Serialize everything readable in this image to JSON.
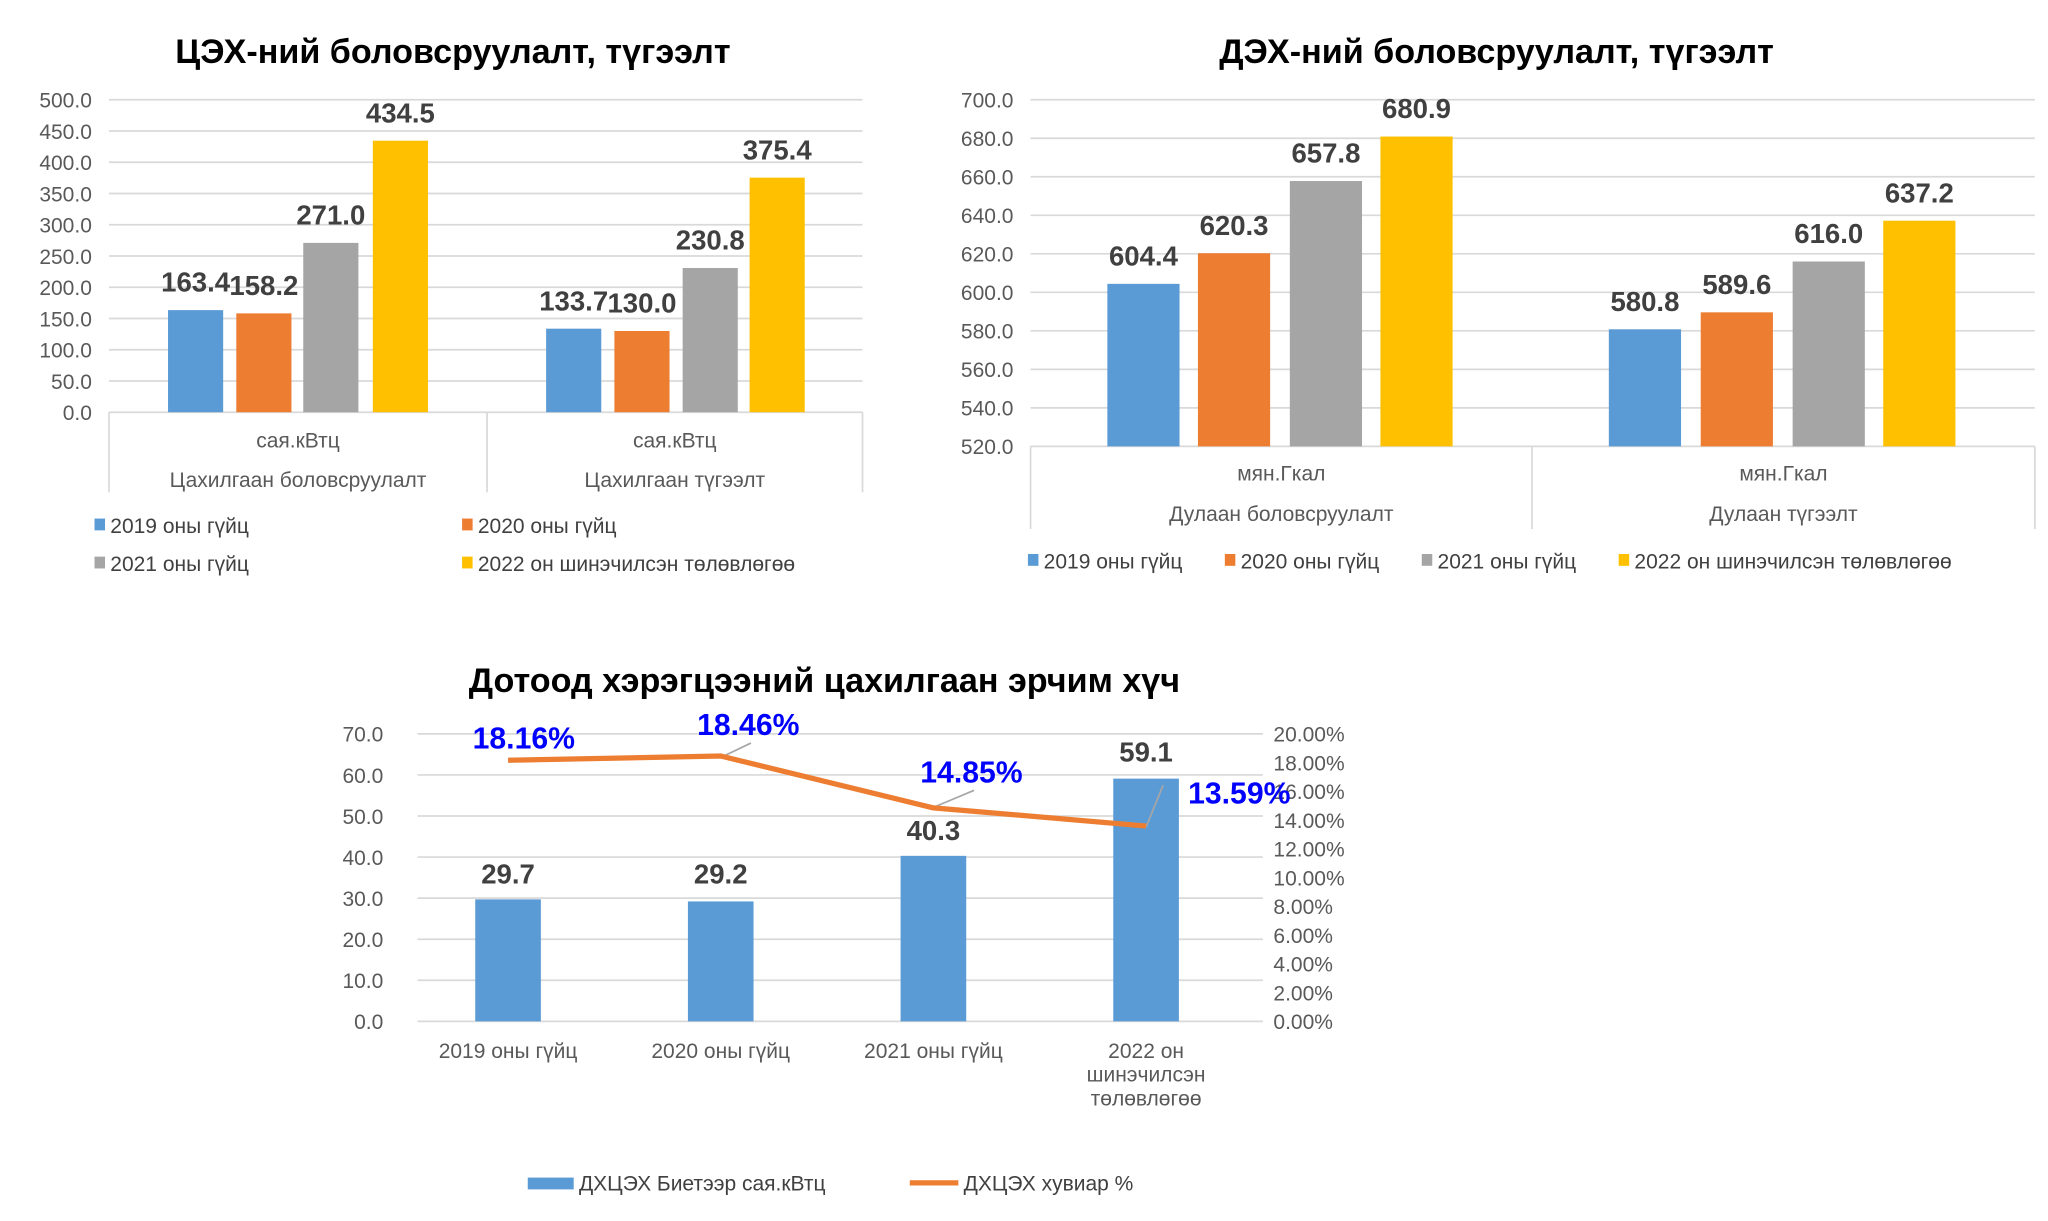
{
  "colors": {
    "s2019": "#5b9bd5",
    "s2020": "#ed7d31",
    "s2021": "#a5a5a5",
    "s2022": "#ffc000",
    "line": "#ed7d31",
    "pct_label": "#0000ff",
    "grid": "#d9d9d9"
  },
  "chart_data": [
    {
      "type": "bar",
      "title": "ЦЭХ-ний боловсруулалт, түгээлт",
      "ylim": [
        0,
        500
      ],
      "yticks": [
        "0.0",
        "50.0",
        "100.0",
        "150.0",
        "200.0",
        "250.0",
        "300.0",
        "350.0",
        "400.0",
        "450.0",
        "500.0"
      ],
      "categories": [
        {
          "unit": "сая.кВтц",
          "label": "Цахилгаан боловсруулалт"
        },
        {
          "unit": "сая.кВтц",
          "label": "Цахилгаан түгээлт"
        }
      ],
      "series": [
        {
          "name": "2019 оны гүйц",
          "values": [
            163.4,
            133.7
          ],
          "labels": [
            "163.4",
            "133.7"
          ]
        },
        {
          "name": "2020 оны гүйц",
          "values": [
            158.2,
            130.0
          ],
          "labels": [
            "158.2",
            "130.0"
          ]
        },
        {
          "name": "2021 оны гүйц",
          "values": [
            271.0,
            230.8
          ],
          "labels": [
            "271.0",
            "230.8"
          ]
        },
        {
          "name": "2022 он шинэчилсэн төлөвлөгөө",
          "values": [
            434.5,
            375.4
          ],
          "labels": [
            "434.5",
            "375.4"
          ]
        }
      ],
      "legend": "bottom"
    },
    {
      "type": "bar",
      "title": "ДЭХ-ний боловсруулалт, түгээлт",
      "ylim": [
        520,
        700
      ],
      "yticks": [
        "520.0",
        "540.0",
        "560.0",
        "580.0",
        "600.0",
        "620.0",
        "640.0",
        "660.0",
        "680.0",
        "700.0"
      ],
      "categories": [
        {
          "unit": "мян.Гкал",
          "label": "Дулаан боловсруулалт"
        },
        {
          "unit": "мян.Гкал",
          "label": "Дулаан түгээлт"
        }
      ],
      "series": [
        {
          "name": "2019 оны гүйц",
          "values": [
            604.4,
            580.8
          ],
          "labels": [
            "604.4",
            "580.8"
          ]
        },
        {
          "name": "2020 оны гүйц",
          "values": [
            620.3,
            589.6
          ],
          "labels": [
            "620.3",
            "589.6"
          ]
        },
        {
          "name": "2021 оны гүйц",
          "values": [
            657.8,
            616.0
          ],
          "labels": [
            "657.8",
            "616.0"
          ]
        },
        {
          "name": "2022 он шинэчилсэн төлөвлөгөө",
          "values": [
            680.9,
            637.2
          ],
          "labels": [
            "680.9",
            "637.2"
          ]
        }
      ],
      "legend": "bottom"
    },
    {
      "type": "bar+line",
      "title": "Дотоод хэрэгцээний цахилгаан эрчим хүч",
      "ylim": [
        0,
        70
      ],
      "y2lim": [
        0,
        20
      ],
      "yticks": [
        "0.0",
        "10.0",
        "20.0",
        "30.0",
        "40.0",
        "50.0",
        "60.0",
        "70.0"
      ],
      "y2ticks": [
        "0.00%",
        "2.00%",
        "4.00%",
        "6.00%",
        "8.00%",
        "10.00%",
        "12.00%",
        "14.00%",
        "16.00%",
        "18.00%",
        "20.00%"
      ],
      "categories": [
        [
          "2019 оны гүйц"
        ],
        [
          "2020 оны гүйц"
        ],
        [
          "2021 оны гүйц"
        ],
        [
          "2022 он",
          "шинэчилсэн",
          "төлөвлөгөө"
        ]
      ],
      "bar_series": {
        "name": "ДХЦЭХ  Биетээр  сая.кВтц",
        "values": [
          29.7,
          29.2,
          40.3,
          59.1
        ],
        "labels": [
          "29.7",
          "29.2",
          "40.3",
          "59.1"
        ]
      },
      "line_series": {
        "name": "ДХЦЭХ  хувиар  %",
        "values": [
          18.16,
          18.46,
          14.85,
          13.59
        ],
        "labels": [
          "18.16%",
          "18.46%",
          "14.85%",
          "13.59%"
        ]
      },
      "legend": "bottom"
    }
  ]
}
